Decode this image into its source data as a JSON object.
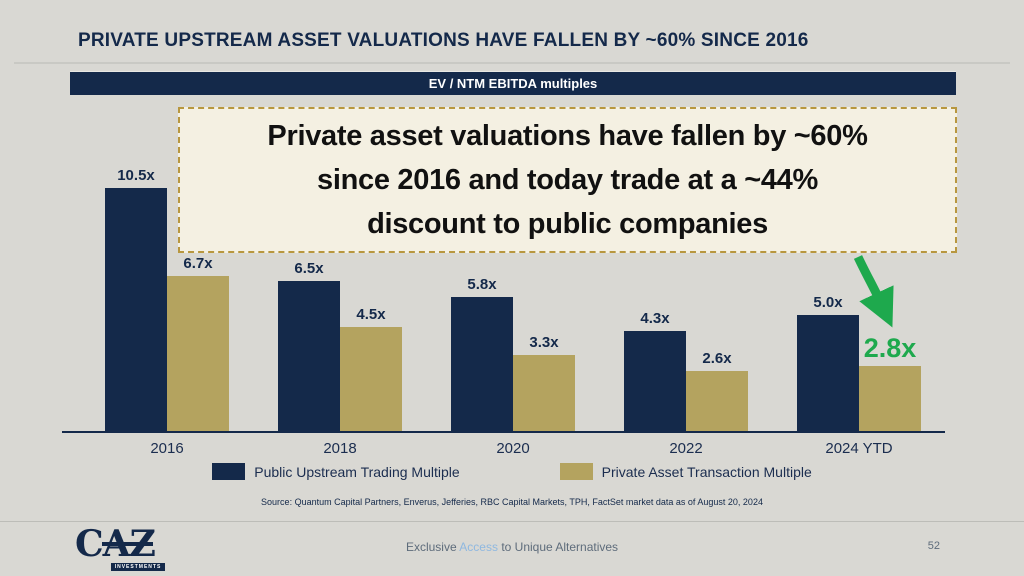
{
  "slide": {
    "title": "PRIVATE UPSTREAM ASSET VALUATIONS HAVE FALLEN BY ~60% SINCE 2016",
    "banner": "EV / NTM EBITDA multiples",
    "callout": {
      "line1": "Private asset valuations have fallen by ~60%",
      "line2": "since 2016 and today trade at a ~44%",
      "line3": "discount to public companies"
    },
    "source": "Source: Quantum Capital Partners, Enverus, Jefferies, RBC Capital Markets, TPH, FactSet market data as of August 20, 2024",
    "footer": {
      "logo_text": "CAZ",
      "logo_sub": "INVESTMENTS",
      "tagline_pre": "Exclusive ",
      "tagline_highlight": "Access",
      "tagline_post": " to Unique Alternatives",
      "page_number": "52"
    }
  },
  "colors": {
    "background": "#d9d8d3",
    "navy": "#14294a",
    "gold": "#b4a35f",
    "green": "#1ea94d",
    "callout_bg": "#f4f0e2",
    "callout_border": "#b8973f",
    "footer_text": "#5e6c7b",
    "access_blue": "#8fb8e0"
  },
  "legend": {
    "items": [
      {
        "label": "Public Upstream Trading Multiple",
        "color": "#14294a"
      },
      {
        "label": "Private Asset Transaction Multiple",
        "color": "#b4a35f"
      }
    ]
  },
  "chart_data": {
    "type": "bar",
    "title": "EV / NTM EBITDA multiples",
    "categories": [
      "2016",
      "2018",
      "2020",
      "2022",
      "2024 YTD"
    ],
    "series": [
      {
        "name": "Public Upstream Trading Multiple",
        "color": "#14294a",
        "values": [
          10.5,
          6.5,
          5.8,
          4.3,
          5.0
        ],
        "labels": [
          "10.5x",
          "6.5x",
          "5.8x",
          "4.3x",
          "5.0x"
        ]
      },
      {
        "name": "Private Asset Transaction Multiple",
        "color": "#b4a35f",
        "values": [
          6.7,
          4.5,
          3.3,
          2.6,
          2.8
        ],
        "labels": [
          "6.7x",
          "4.5x",
          "3.3x",
          "2.6x",
          "2.8x"
        ]
      }
    ],
    "xlabel": "",
    "ylabel": "EV / NTM EBITDA multiple",
    "ylim": [
      0,
      11
    ],
    "grid": false,
    "legend_position": "bottom",
    "highlight": {
      "series": 1,
      "index": 4,
      "color": "#1ea94d",
      "note": "green arrow points at 2.8x"
    }
  }
}
